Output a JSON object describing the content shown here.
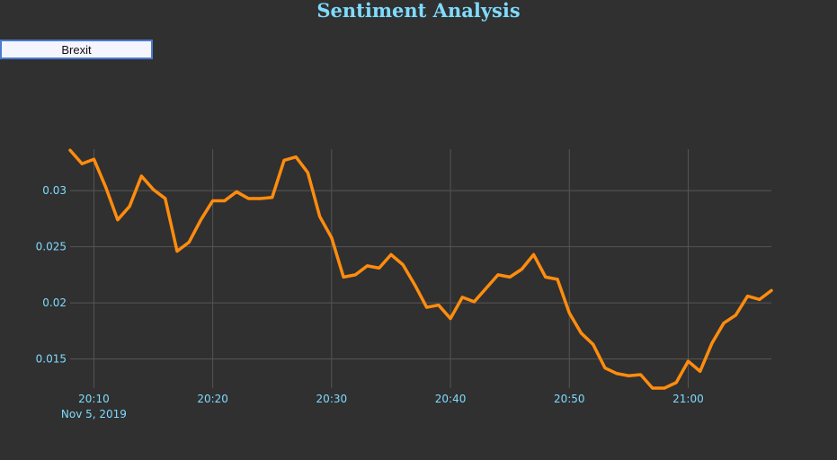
{
  "header": {
    "title": "Sentiment Analysis"
  },
  "search": {
    "value": "Brexit"
  },
  "colors": {
    "line": "#ff8c0e",
    "accent": "#7fdbff",
    "grid": "#555555",
    "background": "#303030"
  },
  "chart_data": {
    "type": "line",
    "title": "",
    "xlabel": "",
    "ylabel": "",
    "grid": true,
    "x_start": "2019-11-05 20:08",
    "x_step_minutes": 1,
    "x_ticks": [
      {
        "t": "20:10",
        "sub": "Nov 5, 2019"
      },
      {
        "t": "20:20",
        "sub": ""
      },
      {
        "t": "20:30",
        "sub": ""
      },
      {
        "t": "20:40",
        "sub": ""
      },
      {
        "t": "20:50",
        "sub": ""
      },
      {
        "t": "21:00",
        "sub": ""
      }
    ],
    "y_ticks": [
      "0.015",
      "0.02",
      "0.025",
      "0.03"
    ],
    "ylim": [
      0.0124,
      0.0337
    ],
    "series": [
      {
        "name": "",
        "values": [
          0.0336,
          0.0324,
          0.0328,
          0.0303,
          0.0274,
          0.0286,
          0.0313,
          0.0301,
          0.0293,
          0.0246,
          0.0254,
          0.0274,
          0.0291,
          0.0291,
          0.0299,
          0.0293,
          0.0293,
          0.0294,
          0.0327,
          0.033,
          0.0316,
          0.0277,
          0.0258,
          0.0223,
          0.0225,
          0.0233,
          0.0231,
          0.0243,
          0.0234,
          0.0216,
          0.0196,
          0.0198,
          0.0186,
          0.0205,
          0.0201,
          0.0213,
          0.0225,
          0.0223,
          0.023,
          0.0243,
          0.0223,
          0.0221,
          0.0191,
          0.0173,
          0.0163,
          0.0142,
          0.0137,
          0.0135,
          0.0136,
          0.0124,
          0.0124,
          0.0129,
          0.0148,
          0.0139,
          0.0164,
          0.0182,
          0.0189,
          0.0206,
          0.0203,
          0.0211
        ]
      }
    ]
  }
}
